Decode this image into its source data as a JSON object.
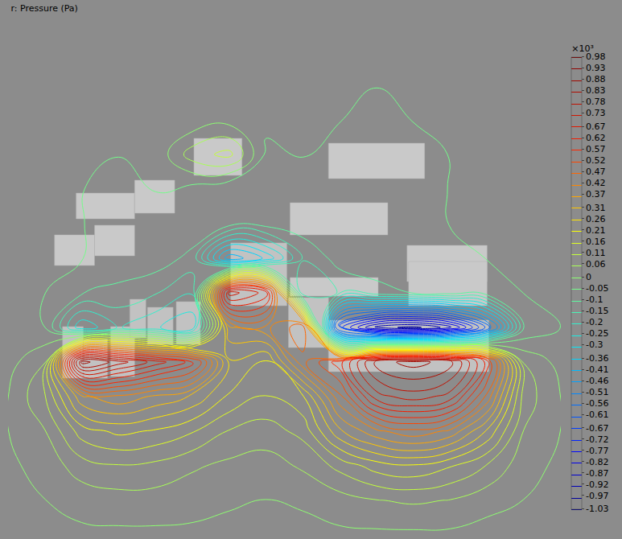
{
  "chart_data": {
    "type": "contour",
    "title": "r: Pressure (Pa)",
    "tick_labels": false,
    "x": [
      0,
      1,
      2,
      3,
      4,
      5,
      6,
      7,
      8,
      9,
      10,
      11,
      12,
      13,
      14,
      15
    ],
    "y": [
      0,
      1,
      2,
      3,
      4,
      5,
      6,
      7,
      8,
      9,
      10,
      11,
      12,
      13,
      14,
      15
    ],
    "xlim": [
      0,
      15
    ],
    "ylim": [
      15,
      0
    ],
    "z": [
      [
        -0.02,
        -0.02,
        -0.03,
        -0.03,
        -0.03,
        -0.03,
        -0.02,
        -0.02,
        -0.02,
        -0.02,
        -0.03,
        -0.03,
        -0.02,
        -0.02,
        -0.02,
        -0.02
      ],
      [
        -0.02,
        -0.03,
        -0.03,
        -0.04,
        -0.04,
        -0.03,
        -0.03,
        -0.03,
        -0.03,
        -0.03,
        -0.04,
        -0.04,
        -0.03,
        -0.03,
        -0.02,
        -0.02
      ],
      [
        -0.03,
        -0.03,
        -0.04,
        -0.04,
        -0.04,
        -0.05,
        -0.04,
        -0.04,
        -0.04,
        -0.04,
        -0.05,
        -0.05,
        -0.04,
        -0.03,
        -0.03,
        -0.02
      ],
      [
        -0.03,
        -0.04,
        -0.04,
        -0.05,
        -0.05,
        -0.04,
        -0.02,
        -0.04,
        -0.05,
        -0.05,
        -0.06,
        -0.05,
        -0.04,
        -0.04,
        -0.03,
        -0.03
      ],
      [
        -0.03,
        -0.04,
        -0.05,
        -0.05,
        -0.04,
        0.08,
        0.12,
        -0.06,
        -0.05,
        -0.06,
        -0.06,
        -0.06,
        -0.05,
        -0.04,
        -0.03,
        -0.03
      ],
      [
        -0.03,
        -0.04,
        -0.05,
        -0.06,
        -0.05,
        -0.07,
        -0.1,
        -0.07,
        -0.06,
        -0.06,
        -0.06,
        -0.06,
        -0.05,
        -0.04,
        -0.04,
        -0.03
      ],
      [
        -0.03,
        -0.04,
        -0.05,
        -0.06,
        -0.06,
        -0.06,
        -0.08,
        -0.08,
        -0.07,
        -0.07,
        -0.06,
        -0.06,
        -0.05,
        -0.05,
        -0.04,
        -0.03
      ],
      [
        -0.03,
        -0.04,
        -0.05,
        -0.06,
        -0.07,
        -0.12,
        -0.45,
        -0.35,
        -0.15,
        -0.08,
        -0.07,
        -0.06,
        -0.06,
        -0.05,
        -0.04,
        -0.03
      ],
      [
        -0.03,
        -0.05,
        -0.1,
        -0.12,
        -0.15,
        -0.2,
        0.75,
        0.65,
        -0.2,
        -0.15,
        -0.12,
        -0.1,
        -0.08,
        -0.07,
        -0.05,
        -0.04
      ],
      [
        -0.03,
        -0.05,
        -0.3,
        -0.2,
        -0.25,
        -0.3,
        0.35,
        0.4,
        0.5,
        -0.7,
        -0.95,
        -1.0,
        -0.9,
        -0.6,
        -0.1,
        -0.05
      ],
      [
        -0.02,
        0.05,
        0.9,
        0.8,
        0.7,
        0.6,
        0.25,
        0.2,
        0.45,
        0.6,
        0.85,
        0.9,
        0.85,
        0.6,
        0.05,
        -0.02
      ],
      [
        0.0,
        0.1,
        0.35,
        0.4,
        0.35,
        0.3,
        0.2,
        0.15,
        0.2,
        0.45,
        0.7,
        0.75,
        0.7,
        0.45,
        0.08,
        0.0
      ],
      [
        0.0,
        0.05,
        0.18,
        0.22,
        0.2,
        0.16,
        0.1,
        0.08,
        0.12,
        0.3,
        0.4,
        0.45,
        0.4,
        0.25,
        0.05,
        0.0
      ],
      [
        -0.01,
        0.02,
        0.08,
        0.1,
        0.09,
        0.06,
        0.04,
        0.03,
        0.06,
        0.12,
        0.18,
        0.2,
        0.16,
        0.1,
        0.02,
        -0.01
      ],
      [
        -0.02,
        0.0,
        0.02,
        0.03,
        0.03,
        0.02,
        0.01,
        0.0,
        0.01,
        0.03,
        0.05,
        0.06,
        0.05,
        0.02,
        0.0,
        -0.02
      ],
      [
        -0.02,
        -0.02,
        -0.01,
        -0.01,
        -0.01,
        -0.01,
        -0.02,
        -0.02,
        -0.02,
        -0.01,
        -0.01,
        -0.01,
        -0.01,
        -0.02,
        -0.02,
        -0.02
      ]
    ],
    "colorbar": {
      "label": "×10³",
      "range": [
        -1.03,
        0.98
      ],
      "ticks": [
        0.98,
        0.93,
        0.88,
        0.83,
        0.78,
        0.73,
        0.67,
        0.62,
        0.57,
        0.52,
        0.47,
        0.42,
        0.37,
        0.31,
        0.26,
        0.21,
        0.16,
        0.11,
        0.06,
        0,
        -0.05,
        -0.1,
        -0.15,
        -0.2,
        -0.25,
        -0.3,
        -0.36,
        -0.41,
        -0.46,
        -0.51,
        -0.56,
        -0.61,
        -0.67,
        -0.72,
        -0.77,
        -0.82,
        -0.87,
        -0.92,
        -0.97,
        -1.03
      ]
    }
  }
}
